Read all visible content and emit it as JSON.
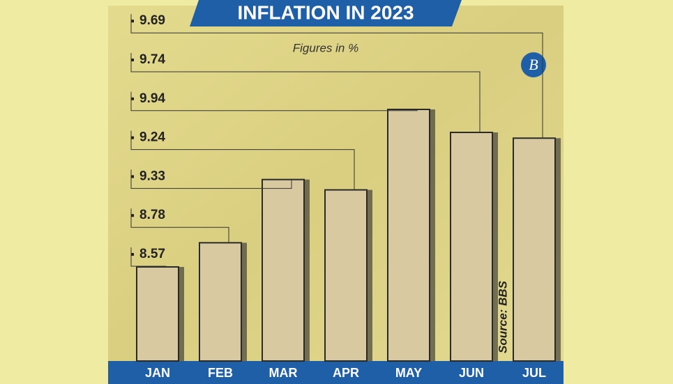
{
  "chart_data": {
    "type": "bar",
    "title": "INFLATION IN 2023",
    "subtitle": "Figures in %",
    "source": "Source: BBS",
    "categories": [
      "JAN",
      "FEB",
      "MAR",
      "APR",
      "MAY",
      "JUN",
      "JUL"
    ],
    "values": [
      8.57,
      8.78,
      9.33,
      9.24,
      9.94,
      9.74,
      9.69
    ],
    "color": "#d8c9a0"
  }
}
